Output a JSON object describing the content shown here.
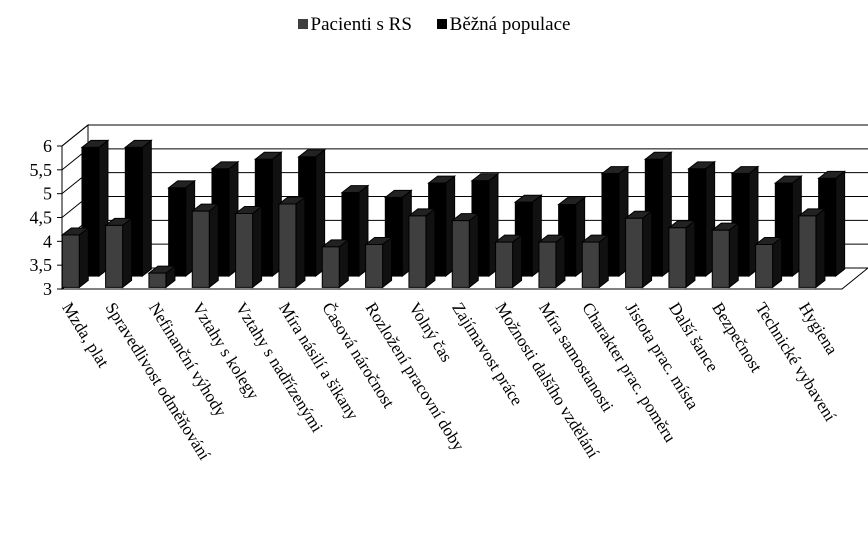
{
  "chart_data": {
    "type": "bar",
    "categories": [
      "Mzda, plat",
      "Spravedlivost odměňování",
      "Nefinanční výhody",
      "Vztahy s kolegy",
      "Vztahy s nadřízenými",
      "Míra násilí a šikany",
      "Časová náročnost",
      "Rozložení pracovní doby",
      "Volný čas",
      "Zajímavost práce",
      "Možnosti dalšího vzdělání",
      "Míra samostanosti",
      "Charakter prac. poměru",
      "Jistota prac. místa",
      "Další šance",
      "Bezpečnost",
      "Technické vybavení",
      "Hygiena"
    ],
    "series": [
      {
        "name": "Pacienti s RS",
        "color": "#3f3f3f",
        "values": [
          4.1,
          4.3,
          3.3,
          4.6,
          4.55,
          4.75,
          3.85,
          3.9,
          4.5,
          4.4,
          3.95,
          3.95,
          3.95,
          4.45,
          4.25,
          4.2,
          3.9,
          4.5
        ]
      },
      {
        "name": "Běžná populace",
        "color": "#000000",
        "values": [
          5.7,
          5.7,
          4.85,
          5.25,
          5.45,
          5.5,
          4.75,
          4.65,
          4.95,
          5.0,
          4.55,
          4.5,
          5.15,
          5.45,
          5.25,
          5.15,
          4.95,
          5.05
        ]
      }
    ],
    "yticks": [
      "3",
      "3,5",
      "4",
      "4,5",
      "5",
      "5,5",
      "6"
    ],
    "ylim": [
      3,
      6
    ],
    "legend": "top-center",
    "grid": true
  }
}
